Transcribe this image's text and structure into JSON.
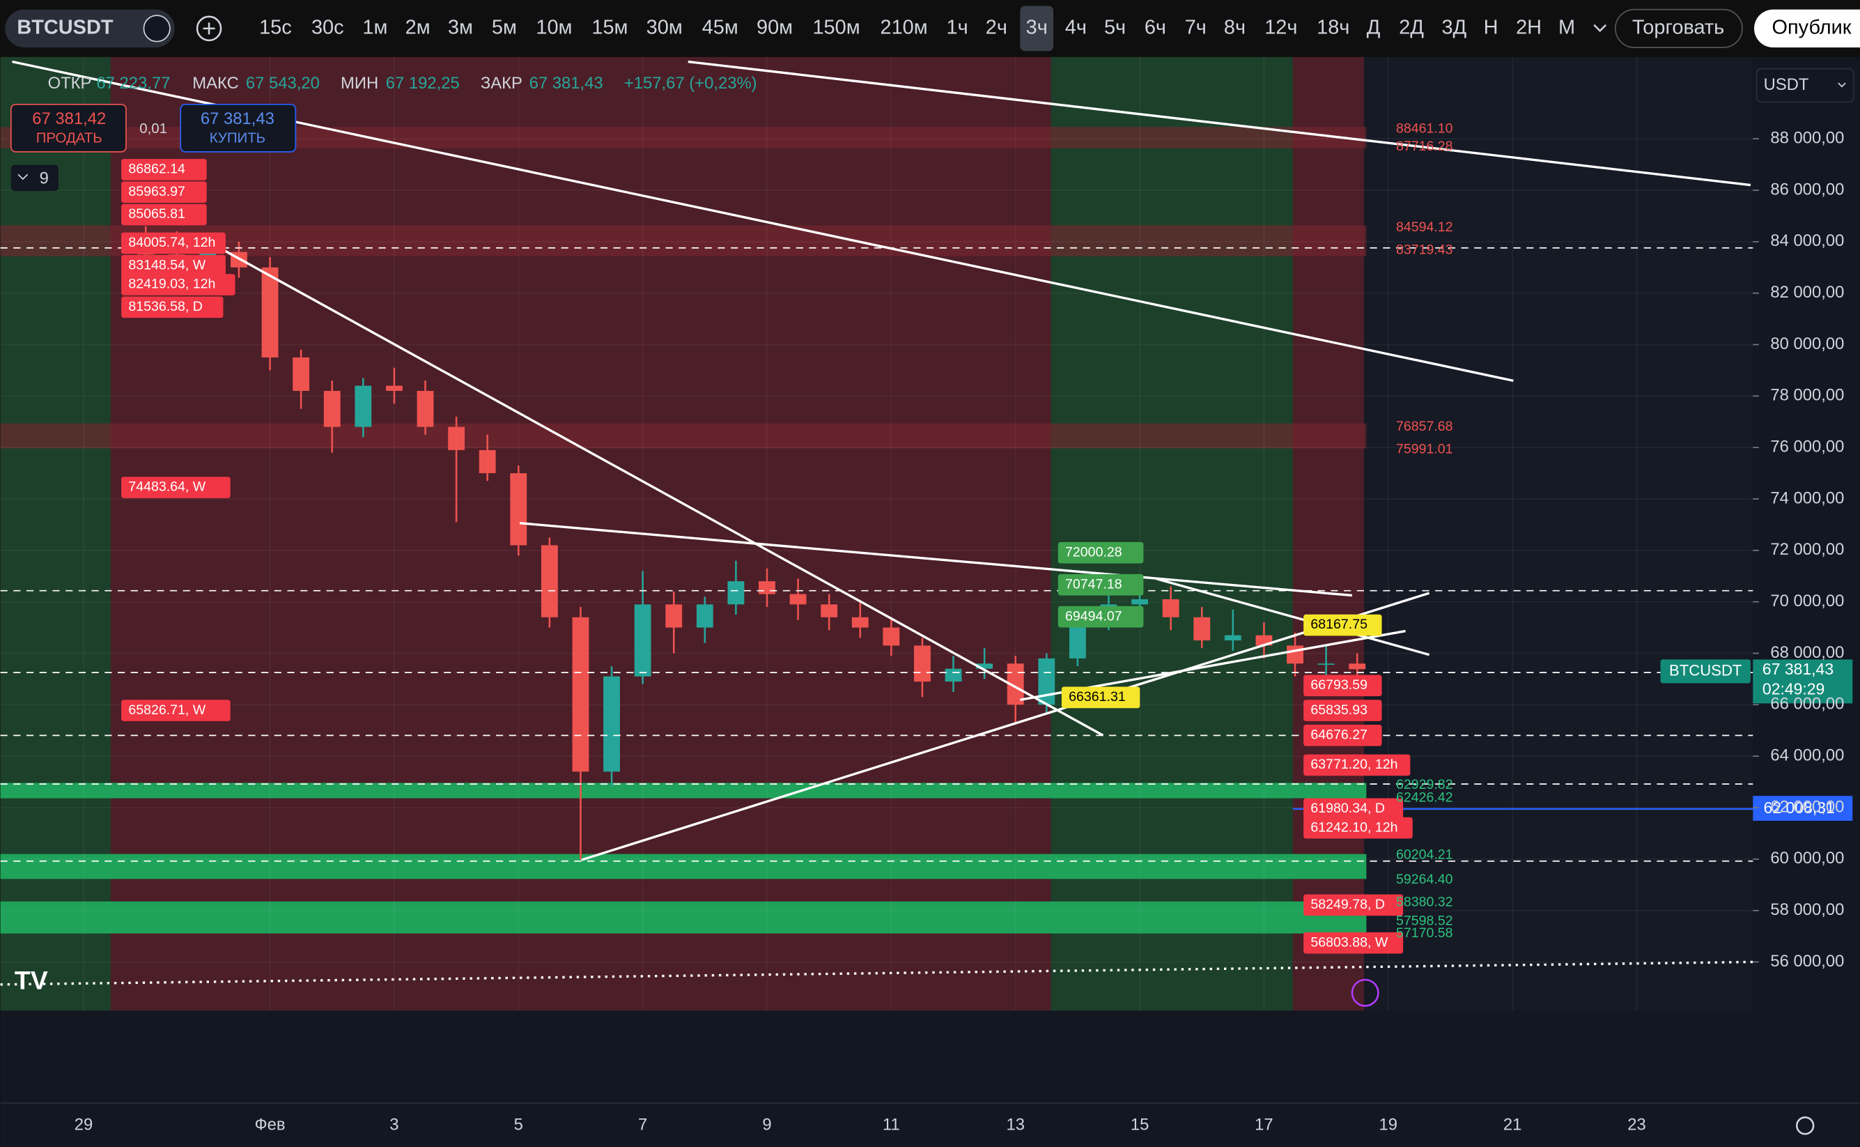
{
  "toolbar": {
    "symbol": "BTCUSDT",
    "intervals": [
      "15с",
      "30с",
      "1м",
      "2м",
      "3м",
      "5м",
      "10м",
      "15м",
      "30м",
      "45м",
      "90м",
      "150м",
      "210м",
      "1ч",
      "2ч",
      "3ч",
      "4ч",
      "5ч",
      "6ч",
      "7ч",
      "8ч",
      "12ч",
      "18ч",
      "Д",
      "2Д",
      "3Д",
      "Н",
      "2Н",
      "М"
    ],
    "trade_button": "Торговать",
    "publish_button": "Опублик"
  },
  "header": {
    "open_label": "ОТКР",
    "open": "67 223,77",
    "high_label": "МАКС",
    "high": "67 543,20",
    "low_label": "МИН",
    "low": "67 192,25",
    "close_label": "ЗАКР",
    "close": "67 381,43",
    "change": "+157,67 (+0,23%)",
    "sell_price": "67 381,42",
    "sell_label": "ПРОДАТЬ",
    "spread": "0,01",
    "buy_price": "67 381,43",
    "buy_label": "КУПИТЬ",
    "indicators_count": "9",
    "currency": "USDT"
  },
  "left_levels": [
    "86862.14",
    "85963.97",
    "85065.81",
    "84005.74, 12h",
    "83148.54, W",
    "82419.03, 12h",
    "81536.58, D",
    "74483.64, W",
    "65826.71, W"
  ],
  "right_levels": [
    "66793.59",
    "65835.93",
    "64676.27",
    "63771.20, 12h",
    "61980.34, D",
    "61242.10, 12h",
    "58249.78, D",
    "56803.88, W"
  ],
  "green_levels": [
    "72000.28",
    "70747.18",
    "69494.07"
  ],
  "yellow_levels": [
    "68167.75",
    "66361.31"
  ],
  "zone_labels_red": [
    "88461.10",
    "87716.28",
    "84594.12",
    "83719.43",
    "76857.68",
    "75991.01"
  ],
  "zone_labels_green": [
    "62929.82",
    "62426.42",
    "60204.21",
    "59264.40",
    "58380.32",
    "57598.52",
    "57170.58"
  ],
  "price_tags": {
    "symbol": "BTCUSDT",
    "last": "67 381,43",
    "countdown": "02:49:29",
    "alert": "62 008,31"
  },
  "chart_data": {
    "type": "candlestick",
    "up_color": "#26a69a",
    "down_color": "#ef5350",
    "xlim": [
      -1.34,
      26.87
    ],
    "ylim": [
      54110,
      91320
    ],
    "grid": true,
    "xticks": [
      {
        "value": 0,
        "label": "29"
      },
      {
        "value": 3,
        "label": "Фев"
      },
      {
        "value": 5,
        "label": "3"
      },
      {
        "value": 7,
        "label": "5"
      },
      {
        "value": 9,
        "label": "7"
      },
      {
        "value": 11,
        "label": "9"
      },
      {
        "value": 13,
        "label": "11"
      },
      {
        "value": 15,
        "label": "13"
      },
      {
        "value": 17,
        "label": "15"
      },
      {
        "value": 19,
        "label": "17"
      },
      {
        "value": 21,
        "label": "19"
      },
      {
        "value": 23,
        "label": "21"
      },
      {
        "value": 25,
        "label": "23"
      }
    ],
    "yticks": [
      {
        "value": 88000,
        "label": "88 000,00"
      },
      {
        "value": 86000,
        "label": "86 000,00"
      },
      {
        "value": 84000,
        "label": "84 000,00"
      },
      {
        "value": 82000,
        "label": "82 000,00"
      },
      {
        "value": 80000,
        "label": "80 000,00"
      },
      {
        "value": 78000,
        "label": "78 000,00"
      },
      {
        "value": 76000,
        "label": "76 000,00"
      },
      {
        "value": 74000,
        "label": "74 000,00"
      },
      {
        "value": 72000,
        "label": "72 000,00"
      },
      {
        "value": 70000,
        "label": "70 000,00"
      },
      {
        "value": 68000,
        "label": "68 000,00"
      },
      {
        "value": 66000,
        "label": "66 000,00"
      },
      {
        "value": 64000,
        "label": "64 000,00"
      },
      {
        "value": 62000,
        "label": "62 000,00"
      },
      {
        "value": 60000,
        "label": "60 000,00"
      },
      {
        "value": 58000,
        "label": "58 000,00"
      },
      {
        "value": 56000,
        "label": "56 000,00"
      }
    ],
    "candles": [
      [
        1,
        83800,
        84600,
        83000,
        83500
      ],
      [
        1.5,
        83500,
        84400,
        82500,
        83200
      ],
      [
        2,
        83200,
        84200,
        82800,
        83600
      ],
      [
        2.5,
        83600,
        84000,
        82600,
        83000
      ],
      [
        3,
        83000,
        83400,
        79000,
        79500
      ],
      [
        3.5,
        79500,
        79800,
        77500,
        78200
      ],
      [
        4,
        78200,
        78600,
        75800,
        76800
      ],
      [
        4.5,
        76800,
        78700,
        76400,
        78400
      ],
      [
        5,
        78400,
        79100,
        77700,
        78200
      ],
      [
        5.5,
        78200,
        78600,
        76500,
        76800
      ],
      [
        6,
        76800,
        77200,
        73100,
        75900
      ],
      [
        6.5,
        75900,
        76500,
        74700,
        75000
      ],
      [
        7,
        75000,
        75300,
        71800,
        72200
      ],
      [
        7.5,
        72200,
        72500,
        69000,
        69400
      ],
      [
        8,
        69400,
        69800,
        60000,
        63400
      ],
      [
        8.5,
        63400,
        67500,
        62800,
        67100
      ],
      [
        9,
        67100,
        71200,
        66800,
        69900
      ],
      [
        9.5,
        69900,
        70400,
        68000,
        69000
      ],
      [
        10,
        69000,
        70200,
        68400,
        69900
      ],
      [
        10.5,
        69900,
        71600,
        69500,
        70800
      ],
      [
        11,
        70800,
        71300,
        69800,
        70300
      ],
      [
        11.5,
        70300,
        70900,
        69300,
        69900
      ],
      [
        12,
        69900,
        70300,
        68900,
        69400
      ],
      [
        12.5,
        69400,
        70000,
        68600,
        69000
      ],
      [
        13,
        69000,
        69400,
        67900,
        68300
      ],
      [
        13.5,
        68300,
        68600,
        66300,
        66900
      ],
      [
        14,
        66900,
        67900,
        66500,
        67400
      ],
      [
        14.5,
        67400,
        68200,
        67000,
        67600
      ],
      [
        15,
        67600,
        67900,
        65300,
        66000
      ],
      [
        15.5,
        66000,
        68000,
        65700,
        67800
      ],
      [
        16,
        67800,
        69600,
        67500,
        69200
      ],
      [
        16.5,
        69200,
        70600,
        68900,
        69900
      ],
      [
        17,
        69900,
        70900,
        69400,
        70100
      ],
      [
        17.5,
        70100,
        70600,
        68900,
        69400
      ],
      [
        18,
        69400,
        69800,
        68200,
        68500
      ],
      [
        18.5,
        68500,
        69700,
        68100,
        68700
      ],
      [
        19,
        68700,
        69200,
        67800,
        68300
      ],
      [
        19.5,
        68300,
        68800,
        67100,
        67600
      ],
      [
        20,
        67600,
        68300,
        66600,
        67600
      ],
      [
        20.5,
        67600,
        68000,
        66900,
        67381.43
      ]
    ]
  }
}
